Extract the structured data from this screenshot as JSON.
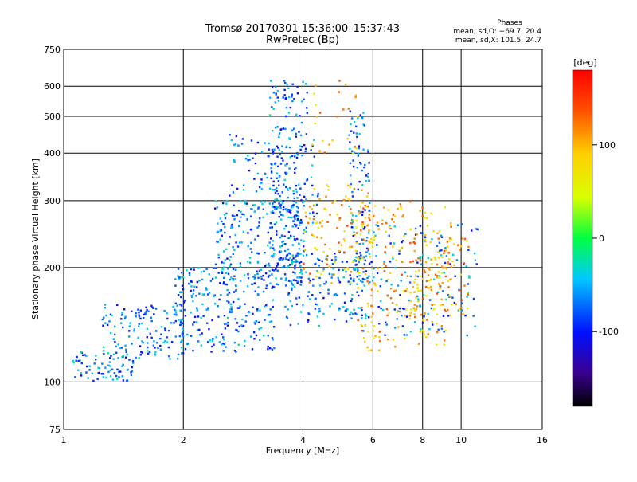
{
  "chart_data": {
    "type": "scatter",
    "title": "Tromsø 20170301 15:36:00–15:37:43",
    "subtitle": "RwPretec (Bp)",
    "phase_box": {
      "title": "Phases",
      "line_o": "mean, sd,O: −69.7, 20.4",
      "line_x": "mean, sd,X: 101.5, 24.7"
    },
    "xlabel": "Frequency [MHz]",
    "ylabel": "Stationary phase Virtual Height [km]",
    "x_scale": "log",
    "y_scale": "log",
    "xlim": [
      1,
      16
    ],
    "ylim": [
      75,
      750
    ],
    "x_ticks": [
      1,
      2,
      4,
      6,
      8,
      10,
      16
    ],
    "x_tick_labels": [
      "1",
      "2",
      "4",
      "6",
      "8",
      "10",
      "16"
    ],
    "y_ticks": [
      75,
      100,
      200,
      300,
      400,
      500,
      600,
      750
    ],
    "y_tick_labels": [
      "75",
      "100",
      "200",
      "300",
      "400",
      "500",
      "600",
      "750"
    ],
    "grid": true,
    "colorbar": {
      "label": "[deg]",
      "range": [
        -180,
        180
      ],
      "ticks": [
        -100,
        0,
        100
      ],
      "tick_labels": [
        "-100",
        "0",
        "100"
      ]
    },
    "series": [
      {
        "mode": "O",
        "color_value_deg": -70,
        "clusters": [
          {
            "f": [
              1.05,
              1.5
            ],
            "h": [
              100,
              120
            ],
            "n": 80
          },
          {
            "f": [
              1.25,
              2.0
            ],
            "h": [
              115,
              160
            ],
            "n": 140
          },
          {
            "f": [
              1.9,
              3.4
            ],
            "h": [
              120,
              200
            ],
            "n": 260
          },
          {
            "f": [
              2.4,
              4.0
            ],
            "h": [
              180,
              300
            ],
            "n": 220
          },
          {
            "f": [
              3.3,
              4.1
            ],
            "h": [
              200,
              620
            ],
            "n": 200
          },
          {
            "f": [
              3.6,
              5.8
            ],
            "h": [
              140,
              220
            ],
            "n": 160
          },
          {
            "f": [
              5.2,
              5.9
            ],
            "h": [
              180,
              520
            ],
            "n": 110
          },
          {
            "f": [
              5.6,
              11.0
            ],
            "h": [
              130,
              260
            ],
            "n": 160
          },
          {
            "f": [
              2.6,
              4.4
            ],
            "h": [
              250,
              450
            ],
            "n": 120
          }
        ]
      },
      {
        "mode": "X",
        "color_value_deg": 100,
        "clusters": [
          {
            "f": [
              4.0,
              6.0
            ],
            "h": [
              180,
              330
            ],
            "n": 120
          },
          {
            "f": [
              5.5,
              9.5
            ],
            "h": [
              120,
              300
            ],
            "n": 220
          },
          {
            "f": [
              7.5,
              10.5
            ],
            "h": [
              150,
              240
            ],
            "n": 80
          },
          {
            "f": [
              4.2,
              5.6
            ],
            "h": [
              400,
              620
            ],
            "n": 25
          }
        ]
      }
    ]
  }
}
